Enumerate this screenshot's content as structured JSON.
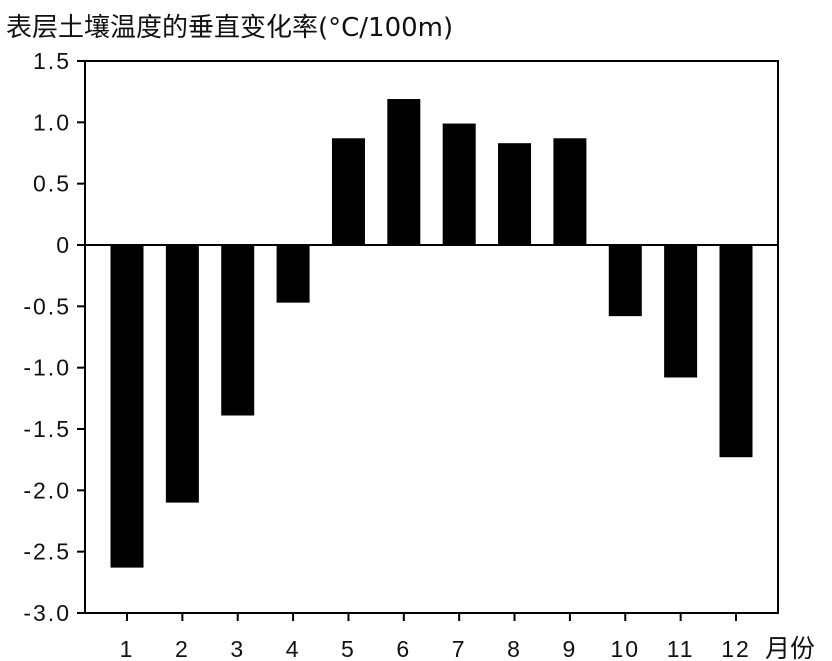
{
  "chart_data": {
    "type": "bar",
    "title": "表层土壤温度的垂直变化率(°C/100m)",
    "xlabel": "月份",
    "ylabel": "",
    "categories": [
      "1",
      "2",
      "3",
      "4",
      "5",
      "6",
      "7",
      "8",
      "9",
      "10",
      "11",
      "12"
    ],
    "values": [
      -2.63,
      -2.1,
      -1.39,
      -0.47,
      0.87,
      1.19,
      0.99,
      0.83,
      0.87,
      -0.58,
      -1.08,
      -1.73
    ],
    "ylim": [
      -3.0,
      1.5
    ],
    "yticks": [
      "1.5",
      "1.0",
      "0.5",
      "0",
      "-0.5",
      "-1.0",
      "-1.5",
      "-2.0",
      "-2.5",
      "-3.0"
    ],
    "ytick_values": [
      1.5,
      1.0,
      0.5,
      0,
      -0.5,
      -1.0,
      -1.5,
      -2.0,
      -2.5,
      -3.0
    ],
    "grid": false,
    "bar_color": "#000000"
  }
}
